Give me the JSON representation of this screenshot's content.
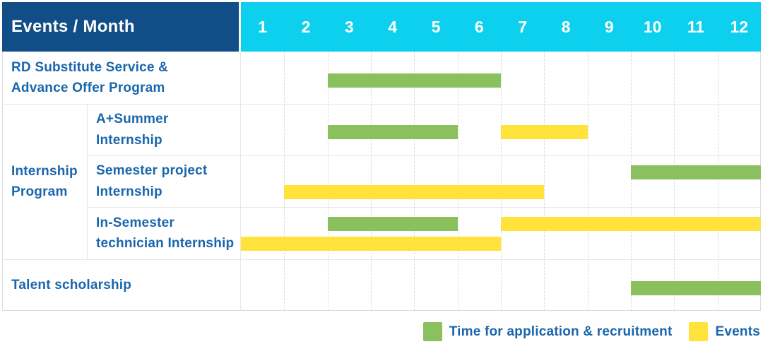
{
  "header": {
    "title": "Events / Month"
  },
  "chart_data": {
    "type": "gantt",
    "x_unit": "month",
    "x_ticks": [
      "1",
      "2",
      "3",
      "4",
      "5",
      "6",
      "7",
      "8",
      "9",
      "10",
      "11",
      "12"
    ],
    "corner_label": "Events / Month",
    "legend": [
      {
        "color_key": "green",
        "label": "Time for application & recruitment"
      },
      {
        "color_key": "yellow",
        "label": "Events"
      }
    ],
    "rows": [
      {
        "label": "RD Substitute Service &\nAdvance Offer Program",
        "group": "",
        "bars": [
          {
            "kind": "application_recruitment",
            "color": "green",
            "start_month": 3,
            "end_month": 6,
            "lane": "single"
          }
        ]
      },
      {
        "label": "A+Summer\nInternship",
        "group": "Internship Program",
        "bars": [
          {
            "kind": "application_recruitment",
            "color": "green",
            "start_month": 3,
            "end_month": 5,
            "lane": "single"
          },
          {
            "kind": "event",
            "color": "yellow",
            "start_month": 7,
            "end_month": 8,
            "lane": "single"
          }
        ]
      },
      {
        "label": "Semester project\nInternship",
        "group": "Internship Program",
        "bars": [
          {
            "kind": "application_recruitment",
            "color": "green",
            "start_month": 10,
            "end_month": 12,
            "lane": "top"
          },
          {
            "kind": "event",
            "color": "yellow",
            "start_month": 2,
            "end_month": 7,
            "lane": "bottom"
          }
        ]
      },
      {
        "label": "In-Semester\ntechnician Internship",
        "group": "Internship Program",
        "bars": [
          {
            "kind": "application_recruitment",
            "color": "green",
            "start_month": 3,
            "end_month": 5,
            "lane": "top"
          },
          {
            "kind": "event",
            "color": "yellow",
            "start_month": 7,
            "end_month": 12,
            "lane": "top"
          },
          {
            "kind": "event",
            "color": "yellow",
            "start_month": 1,
            "end_month": 6,
            "lane": "bottom"
          }
        ]
      },
      {
        "label": "Talent scholarship",
        "group": "",
        "bars": [
          {
            "kind": "application_recruitment",
            "color": "green",
            "start_month": 10,
            "end_month": 12,
            "lane": "single"
          }
        ]
      }
    ]
  },
  "colors": {
    "navy": "#114E87",
    "cyan": "#0CD0ED",
    "green": "#8BC05E",
    "yellow": "#FFE33B",
    "text_blue": "#1A66AC"
  }
}
